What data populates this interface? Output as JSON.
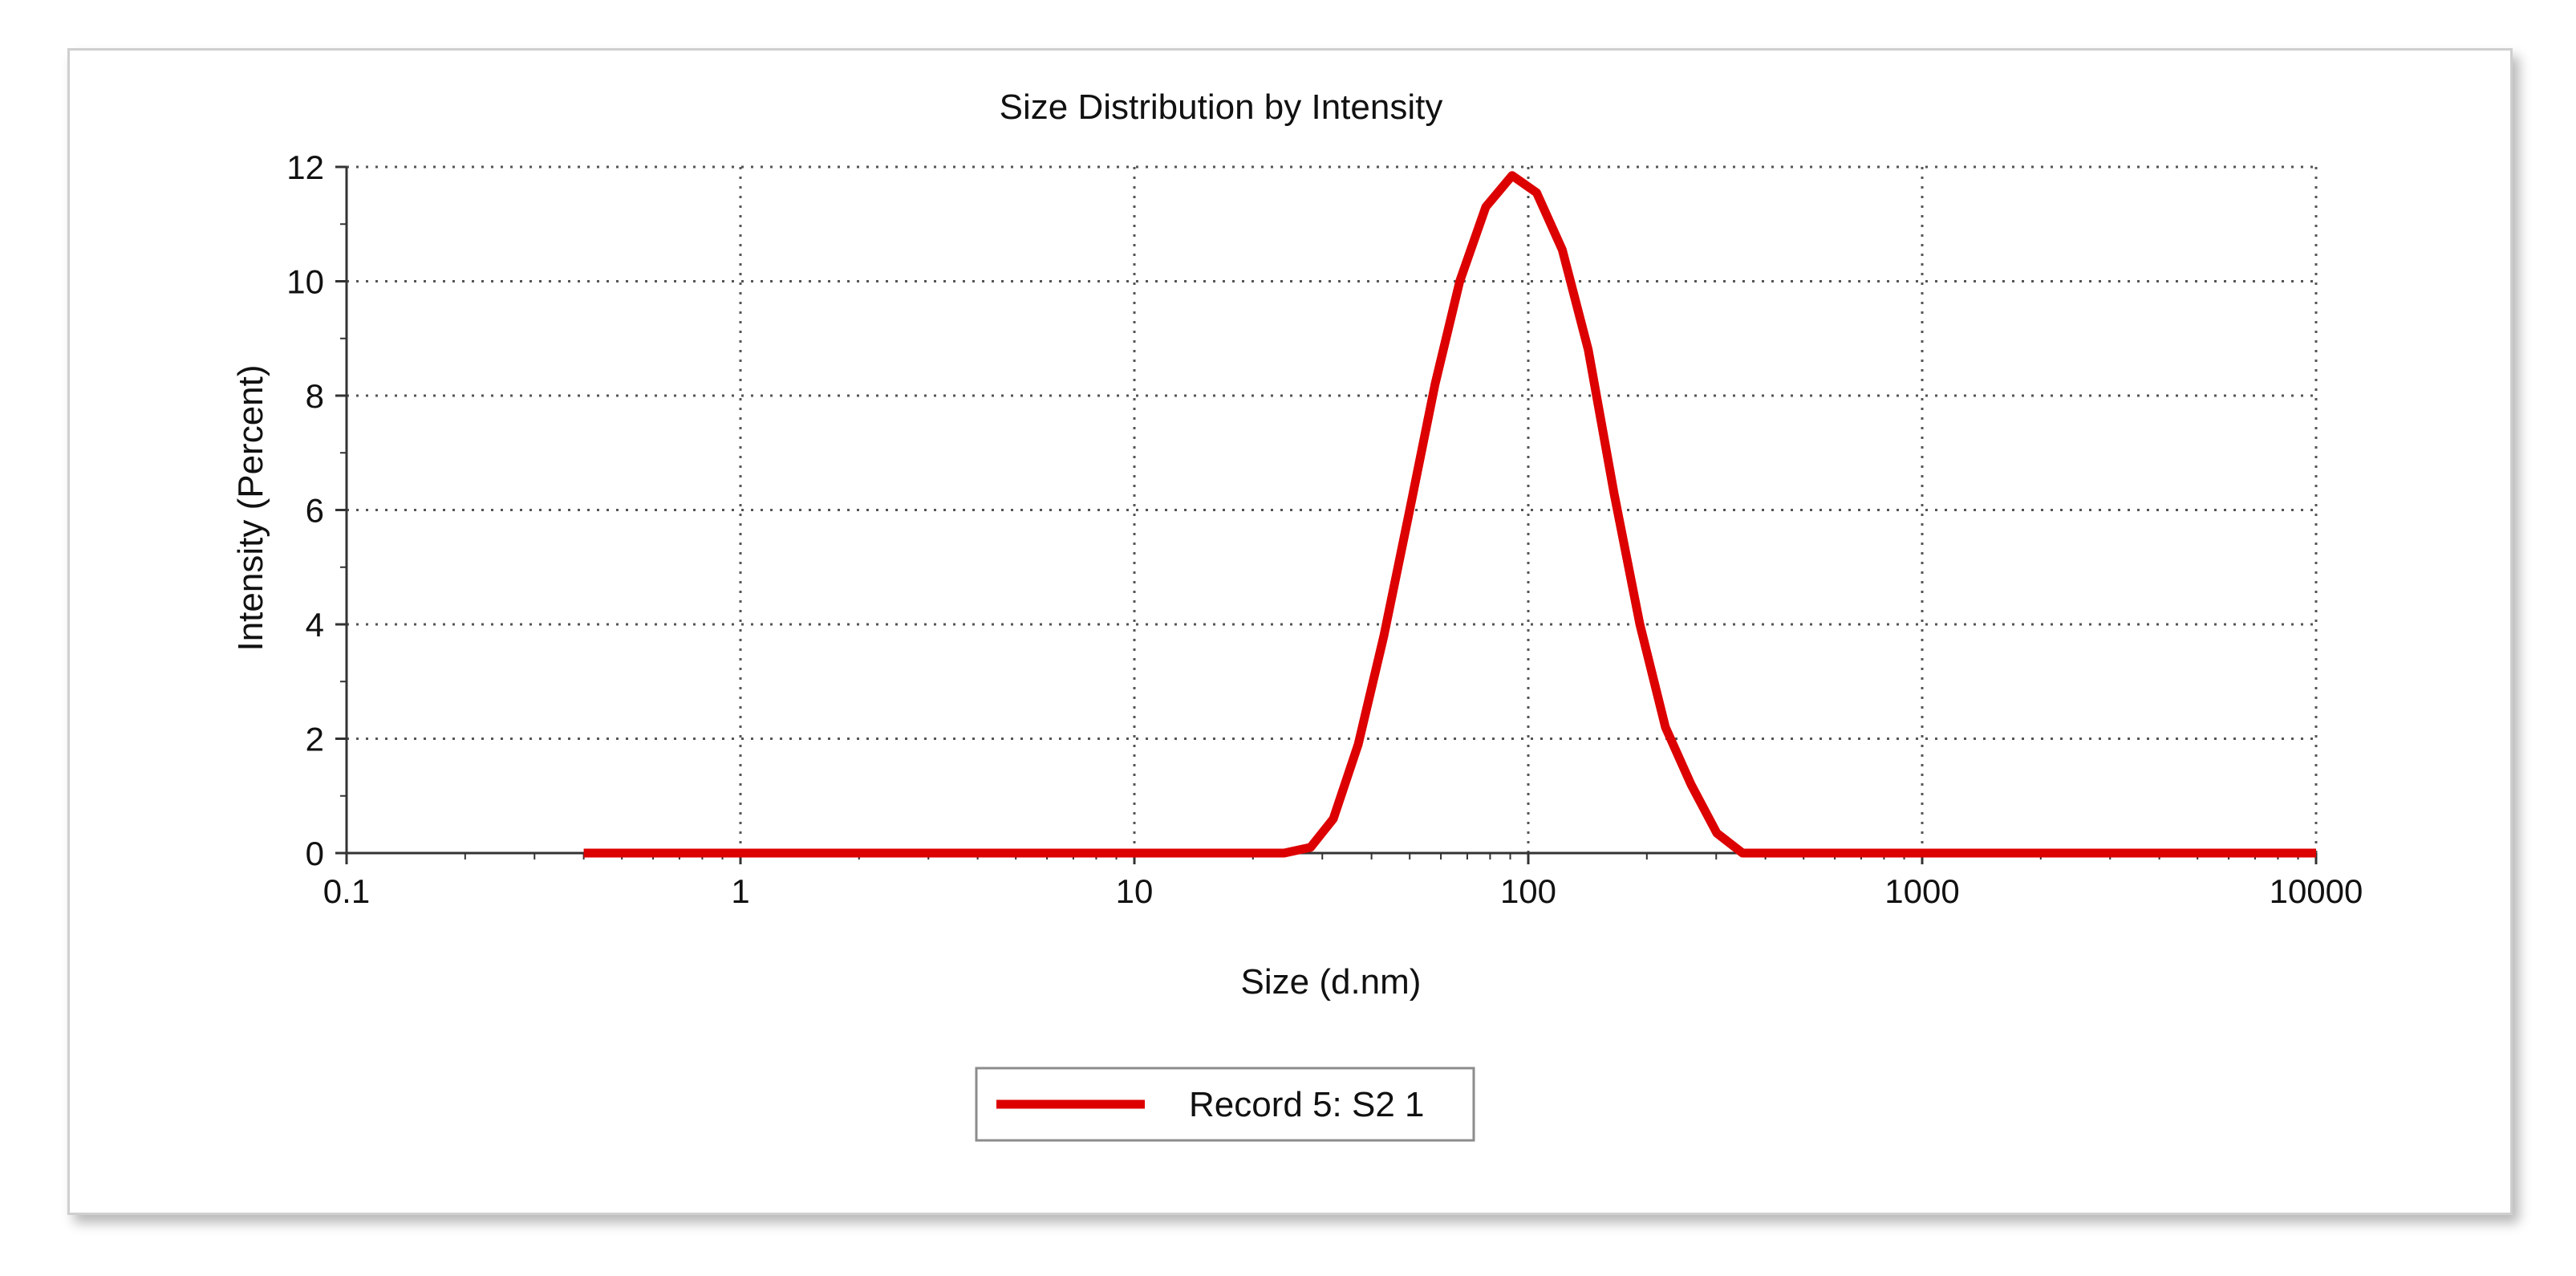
{
  "chart_data": {
    "type": "line",
    "title": "Size Distribution by Intensity",
    "xlabel": "Size (d.nm)",
    "ylabel": "Intensity (Percent)",
    "xscale": "log",
    "xlim": [
      0.1,
      10000
    ],
    "ylim": [
      0,
      12
    ],
    "grid": true,
    "legend_position": "bottom-center",
    "x_ticks": [
      {
        "value": 0.1,
        "label": "0.1"
      },
      {
        "value": 1,
        "label": "1"
      },
      {
        "value": 10,
        "label": "10"
      },
      {
        "value": 100,
        "label": "100"
      },
      {
        "value": 1000,
        "label": "1000"
      },
      {
        "value": 10000,
        "label": "10000"
      }
    ],
    "y_ticks": [
      {
        "value": 0,
        "label": "0"
      },
      {
        "value": 2,
        "label": "2"
      },
      {
        "value": 4,
        "label": "4"
      },
      {
        "value": 6,
        "label": "6"
      },
      {
        "value": 8,
        "label": "8"
      },
      {
        "value": 10,
        "label": "10"
      },
      {
        "value": 12,
        "label": "12"
      }
    ],
    "series": [
      {
        "name": "Record 5: S2 1",
        "color": "#dd0000",
        "points": [
          [
            0.4,
            0
          ],
          [
            1,
            0
          ],
          [
            5,
            0
          ],
          [
            10,
            0
          ],
          [
            20,
            0
          ],
          [
            24,
            0
          ],
          [
            28,
            0.1
          ],
          [
            32,
            0.6
          ],
          [
            37,
            1.9
          ],
          [
            43,
            3.8
          ],
          [
            50,
            6.0
          ],
          [
            58,
            8.2
          ],
          [
            67,
            10.0
          ],
          [
            78,
            11.3
          ],
          [
            91,
            11.85
          ],
          [
            105,
            11.55
          ],
          [
            122,
            10.55
          ],
          [
            142,
            8.8
          ],
          [
            165,
            6.3
          ],
          [
            192,
            4.0
          ],
          [
            223,
            2.2
          ],
          [
            259,
            1.2
          ],
          [
            301,
            0.35
          ],
          [
            350,
            0
          ],
          [
            500,
            0
          ],
          [
            1000,
            0
          ],
          [
            5000,
            0
          ],
          [
            10000,
            0
          ]
        ]
      }
    ]
  }
}
